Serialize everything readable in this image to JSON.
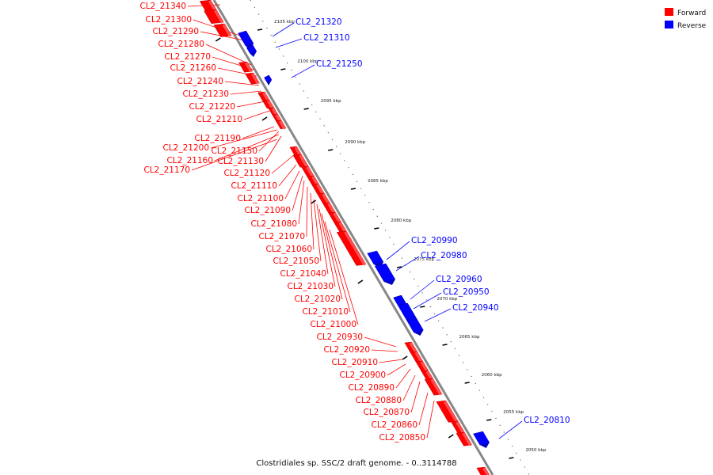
{
  "caption": "Clostridiales sp. SSC/2 draft genome. - 0..3114788",
  "legend": [
    {
      "label": "Forward",
      "color": "#ff0000"
    },
    {
      "label": "Reverse",
      "color": "#0000ff"
    }
  ],
  "colors": {
    "forward": "#ff0000",
    "reverse": "#0000ff",
    "backbone": "#888888"
  },
  "kbp_ticks": [
    "2105 kbp",
    "2100 kbp",
    "2095 kbp",
    "2090 kbp",
    "2085 kbp",
    "2080 kbp",
    "2075 kbp",
    "2070 kbp",
    "2065 kbp",
    "2060 kbp",
    "2055 kbp",
    "2050 kbp"
  ],
  "forward_genes": [
    "CL2_21340",
    "CL2_21300",
    "CL2_21290",
    "CL2_21280",
    "CL2_21270",
    "CL2_21260",
    "CL2_21240",
    "CL2_21230",
    "CL2_21220",
    "CL2_21210",
    "CL2_21190",
    "CL2_21200",
    "CL2_21150",
    "CL2_21160",
    "CL2_21130",
    "CL2_21170",
    "CL2_21120",
    "CL2_21110",
    "CL2_21100",
    "CL2_21090",
    "CL2_21080",
    "CL2_21070",
    "CL2_21060",
    "CL2_21050",
    "CL2_21040",
    "CL2_21030",
    "CL2_21020",
    "CL2_21010",
    "CL2_21000",
    "CL2_20930",
    "CL2_20920",
    "CL2_20910",
    "CL2_20900",
    "CL2_20890",
    "CL2_20880",
    "CL2_20870",
    "CL2_20860",
    "CL2_20850"
  ],
  "reverse_genes": [
    "CL2_21320",
    "CL2_21310",
    "CL2_21250",
    "CL2_20990",
    "CL2_20980",
    "CL2_20960",
    "CL2_20950",
    "CL2_20940",
    "CL2_20810"
  ]
}
